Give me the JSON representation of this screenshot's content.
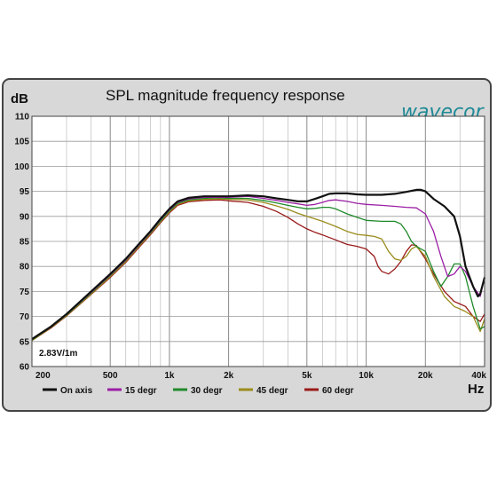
{
  "chart_data": {
    "type": "line",
    "title": "SPL magnitude frequency response",
    "xlabel": "Hz",
    "ylabel": "dB",
    "xscale": "log",
    "xlim": [
      200,
      40000
    ],
    "ylim": [
      60,
      110
    ],
    "grid": true,
    "legend_position": "bottom",
    "annotation": "2.83V/1m",
    "brand": "wavecor",
    "x_ticks": [
      {
        "value": 200,
        "label": "200"
      },
      {
        "value": 500,
        "label": "500"
      },
      {
        "value": 1000,
        "label": "1k"
      },
      {
        "value": 2000,
        "label": "2k"
      },
      {
        "value": 5000,
        "label": "5k"
      },
      {
        "value": 10000,
        "label": "10k"
      },
      {
        "value": 20000,
        "label": "20k"
      },
      {
        "value": 40000,
        "label": "40k"
      }
    ],
    "y_ticks": [
      60,
      65,
      70,
      75,
      80,
      85,
      90,
      95,
      100,
      105,
      110
    ],
    "series": [
      {
        "name": "On axis",
        "color": "#111111",
        "points": [
          [
            200,
            65.5
          ],
          [
            250,
            68
          ],
          [
            300,
            70.5
          ],
          [
            400,
            75
          ],
          [
            500,
            78.5
          ],
          [
            600,
            81.5
          ],
          [
            700,
            84.5
          ],
          [
            800,
            87
          ],
          [
            900,
            89.5
          ],
          [
            1000,
            91.5
          ],
          [
            1100,
            93
          ],
          [
            1250,
            93.7
          ],
          [
            1500,
            94
          ],
          [
            1800,
            94
          ],
          [
            2000,
            94
          ],
          [
            2500,
            94.2
          ],
          [
            3000,
            94
          ],
          [
            3500,
            93.6
          ],
          [
            4000,
            93.3
          ],
          [
            4500,
            93
          ],
          [
            5000,
            93
          ],
          [
            5500,
            93.5
          ],
          [
            6000,
            94
          ],
          [
            6500,
            94.5
          ],
          [
            7000,
            94.6
          ],
          [
            8000,
            94.6
          ],
          [
            9000,
            94.4
          ],
          [
            10000,
            94.3
          ],
          [
            12000,
            94.3
          ],
          [
            14000,
            94.5
          ],
          [
            16000,
            94.9
          ],
          [
            18000,
            95.3
          ],
          [
            19000,
            95.3
          ],
          [
            20000,
            95
          ],
          [
            22000,
            93.5
          ],
          [
            25000,
            92
          ],
          [
            28000,
            90
          ],
          [
            30000,
            86
          ],
          [
            32000,
            80
          ],
          [
            35000,
            76
          ],
          [
            37000,
            74
          ],
          [
            38000,
            74.5
          ],
          [
            40000,
            77.8
          ]
        ]
      },
      {
        "name": "15 degr",
        "color": "#9b1fa5",
        "points": [
          [
            200,
            65.4
          ],
          [
            250,
            68
          ],
          [
            300,
            70.4
          ],
          [
            400,
            74.8
          ],
          [
            500,
            78.3
          ],
          [
            600,
            81.3
          ],
          [
            700,
            84.3
          ],
          [
            800,
            86.8
          ],
          [
            900,
            89.3
          ],
          [
            1000,
            91.3
          ],
          [
            1100,
            92.8
          ],
          [
            1250,
            93.5
          ],
          [
            1500,
            93.8
          ],
          [
            1800,
            93.8
          ],
          [
            2000,
            93.8
          ],
          [
            2500,
            94
          ],
          [
            3000,
            93.6
          ],
          [
            3500,
            93.2
          ],
          [
            4000,
            92.8
          ],
          [
            4500,
            92.5
          ],
          [
            5000,
            92.2
          ],
          [
            5500,
            92.4
          ],
          [
            6000,
            92.8
          ],
          [
            6500,
            93.2
          ],
          [
            7000,
            93.3
          ],
          [
            8000,
            93
          ],
          [
            9000,
            92.6
          ],
          [
            10000,
            92.4
          ],
          [
            12000,
            92.2
          ],
          [
            14000,
            92
          ],
          [
            16000,
            91.8
          ],
          [
            18000,
            91.7
          ],
          [
            20000,
            90.5
          ],
          [
            22000,
            87
          ],
          [
            24000,
            82
          ],
          [
            26000,
            78
          ],
          [
            28000,
            78.5
          ],
          [
            30000,
            80
          ],
          [
            32000,
            79
          ],
          [
            35000,
            76
          ],
          [
            38000,
            74
          ],
          [
            40000,
            78
          ]
        ]
      },
      {
        "name": "30 degr",
        "color": "#1f8a2a",
        "points": [
          [
            200,
            65.3
          ],
          [
            250,
            67.9
          ],
          [
            300,
            70.3
          ],
          [
            400,
            74.7
          ],
          [
            500,
            78.2
          ],
          [
            600,
            81.2
          ],
          [
            700,
            84.2
          ],
          [
            800,
            86.7
          ],
          [
            900,
            89.1
          ],
          [
            1000,
            91.1
          ],
          [
            1100,
            92.6
          ],
          [
            1250,
            93.3
          ],
          [
            1500,
            93.6
          ],
          [
            1800,
            93.7
          ],
          [
            2000,
            93.6
          ],
          [
            2500,
            93.6
          ],
          [
            3000,
            93.2
          ],
          [
            3500,
            92.7
          ],
          [
            4000,
            92.2
          ],
          [
            4500,
            91.8
          ],
          [
            5000,
            91.5
          ],
          [
            5500,
            91.6
          ],
          [
            6000,
            91.8
          ],
          [
            6500,
            91.8
          ],
          [
            7000,
            91.5
          ],
          [
            8000,
            90.5
          ],
          [
            9000,
            89.8
          ],
          [
            10000,
            89.2
          ],
          [
            12000,
            89
          ],
          [
            14000,
            89
          ],
          [
            15000,
            88.5
          ],
          [
            16000,
            87
          ],
          [
            17000,
            85
          ],
          [
            18000,
            84
          ],
          [
            20000,
            83
          ],
          [
            22000,
            79
          ],
          [
            24000,
            76
          ],
          [
            26000,
            78
          ],
          [
            28000,
            80.5
          ],
          [
            30000,
            80.5
          ],
          [
            32000,
            78
          ],
          [
            35000,
            72
          ],
          [
            38000,
            67.5
          ],
          [
            40000,
            68
          ]
        ]
      },
      {
        "name": "45 degr",
        "color": "#9a8c1c",
        "points": [
          [
            200,
            65.2
          ],
          [
            250,
            67.8
          ],
          [
            300,
            70.2
          ],
          [
            400,
            74.5
          ],
          [
            500,
            78
          ],
          [
            600,
            81
          ],
          [
            700,
            84
          ],
          [
            800,
            86.5
          ],
          [
            900,
            88.9
          ],
          [
            1000,
            90.9
          ],
          [
            1100,
            92.4
          ],
          [
            1250,
            93.1
          ],
          [
            1500,
            93.4
          ],
          [
            1800,
            93.5
          ],
          [
            2000,
            93.4
          ],
          [
            2500,
            93.3
          ],
          [
            3000,
            92.8
          ],
          [
            3500,
            92.1
          ],
          [
            4000,
            91.4
          ],
          [
            4500,
            90.6
          ],
          [
            5000,
            90
          ],
          [
            5500,
            89.5
          ],
          [
            6000,
            89
          ],
          [
            7000,
            88
          ],
          [
            8000,
            87
          ],
          [
            9000,
            86.4
          ],
          [
            10000,
            86.2
          ],
          [
            11000,
            86
          ],
          [
            12000,
            85.5
          ],
          [
            13000,
            83
          ],
          [
            14000,
            81.5
          ],
          [
            15000,
            81.2
          ],
          [
            16000,
            82
          ],
          [
            17000,
            83.5
          ],
          [
            18000,
            84
          ],
          [
            20000,
            82
          ],
          [
            22000,
            78
          ],
          [
            25000,
            74
          ],
          [
            28000,
            72
          ],
          [
            30000,
            71.5
          ],
          [
            32000,
            71
          ],
          [
            35000,
            70
          ],
          [
            38000,
            67
          ],
          [
            40000,
            69.5
          ]
        ]
      },
      {
        "name": "60 degr",
        "color": "#9a1a1a",
        "points": [
          [
            200,
            65.2
          ],
          [
            250,
            67.7
          ],
          [
            300,
            70.1
          ],
          [
            400,
            74.4
          ],
          [
            500,
            77.8
          ],
          [
            600,
            80.8
          ],
          [
            700,
            83.8
          ],
          [
            800,
            86.3
          ],
          [
            900,
            88.7
          ],
          [
            1000,
            90.7
          ],
          [
            1100,
            92.2
          ],
          [
            1250,
            92.9
          ],
          [
            1500,
            93.2
          ],
          [
            1800,
            93.3
          ],
          [
            2000,
            93.1
          ],
          [
            2500,
            92.8
          ],
          [
            3000,
            92
          ],
          [
            3500,
            91
          ],
          [
            4000,
            89.8
          ],
          [
            4500,
            88.5
          ],
          [
            5000,
            87.5
          ],
          [
            5500,
            86.8
          ],
          [
            6000,
            86.3
          ],
          [
            7000,
            85.3
          ],
          [
            8000,
            84.4
          ],
          [
            9000,
            84
          ],
          [
            10000,
            83.5
          ],
          [
            11000,
            82
          ],
          [
            11500,
            80
          ],
          [
            12000,
            79
          ],
          [
            13000,
            78.5
          ],
          [
            14000,
            79.5
          ],
          [
            15000,
            81
          ],
          [
            16000,
            83
          ],
          [
            17000,
            84.3
          ],
          [
            18000,
            84.2
          ],
          [
            20000,
            81.5
          ],
          [
            22000,
            78.5
          ],
          [
            25000,
            75
          ],
          [
            28000,
            73
          ],
          [
            30000,
            72.5
          ],
          [
            32000,
            72
          ],
          [
            35000,
            70
          ],
          [
            38000,
            69
          ],
          [
            40000,
            70.5
          ]
        ]
      }
    ]
  }
}
